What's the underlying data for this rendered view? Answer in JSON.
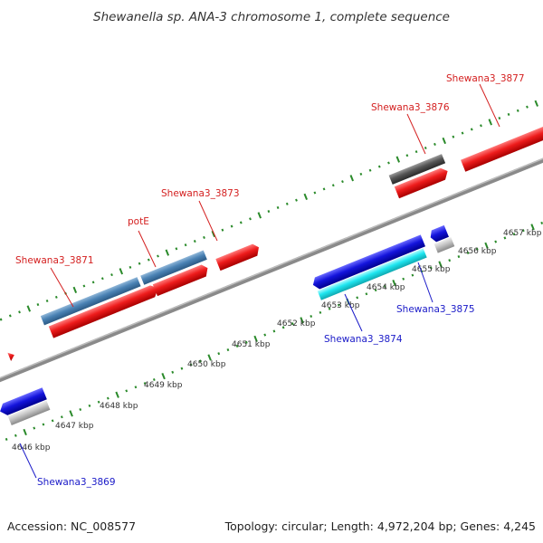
{
  "title": "Shewanella sp. ANA-3 chromosome 1, complete sequence",
  "footer": {
    "accession": "Accession: NC_008577",
    "summary": "Topology: circular; Length: 4,972,204 bp; Genes: 4,245"
  },
  "map": {
    "scale_unit": "kbp",
    "tick_labels": [
      "4646 kbp",
      "4647 kbp",
      "4648 kbp",
      "4649 kbp",
      "4650 kbp",
      "4651 kbp",
      "4652 kbp",
      "4653 kbp",
      "4654 kbp",
      "4655 kbp",
      "4656 kbp",
      "4657 kbp"
    ],
    "colors": {
      "backbone": "#888888",
      "tick_marks": "#2a8a2a",
      "forward_label": "#d42020",
      "reverse_label": "#1a1ac8",
      "gene_red": "#ee1c1c",
      "gene_steelblue": "#4a82b4",
      "gene_blue": "#1414dc",
      "gene_cyan": "#1ee6f0",
      "gene_darkgray": "#555555",
      "gene_lightgray": "#c4c4c4"
    },
    "genes": [
      {
        "label": "Shewana3_3871",
        "strand": "forward",
        "color": "gene_red"
      },
      {
        "label": "potE",
        "strand": "forward",
        "color": "gene_steelblue"
      },
      {
        "label": "Shewana3_3873",
        "strand": "forward",
        "color": "gene_red"
      },
      {
        "label": "Shewana3_3876",
        "strand": "forward",
        "color": "gene_red"
      },
      {
        "label": "Shewana3_3877",
        "strand": "forward",
        "color": "gene_red"
      },
      {
        "label": "Shewana3_3869",
        "strand": "reverse",
        "color": "gene_blue"
      },
      {
        "label": "Shewana3_3874",
        "strand": "reverse",
        "color": "gene_cyan"
      },
      {
        "label": "Shewana3_3875",
        "strand": "reverse",
        "color": "gene_blue"
      }
    ]
  }
}
